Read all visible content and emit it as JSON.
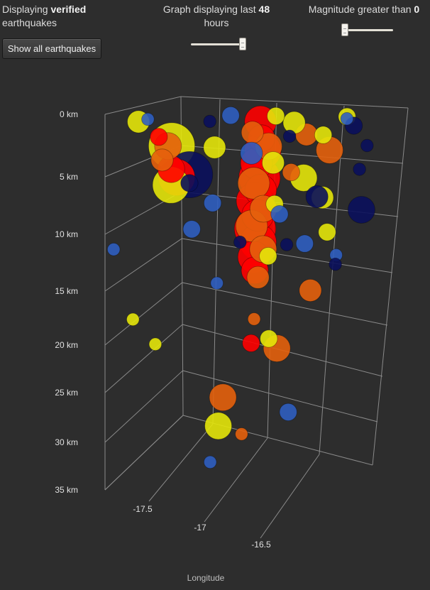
{
  "header": {
    "status_prefix": "Displaying",
    "status_bold": "verified",
    "status_suffix": "earthquakes",
    "hours_prefix": "Graph displaying last",
    "hours_value": "48",
    "hours_suffix": "hours",
    "hours_slider_fraction": 0.98,
    "magnitude_prefix": "Magnitude greater than",
    "magnitude_value": "0",
    "magnitude_slider_fraction": 0.0
  },
  "toolbar": {
    "show_all_label": "Show all earthquakes"
  },
  "colors": {
    "background": "#2d2d2d",
    "grid": "#8a8a8a",
    "red": "#ff0000",
    "orange": "#e4600c",
    "yellow": "#e4e60a",
    "blue": "#2f5ec0",
    "navy": "#0a0f5c"
  },
  "chart_data": {
    "type": "scatter",
    "projection": "3d",
    "xlabel": "Longitude",
    "ylabel": "",
    "x_ticks": [
      "-17.5",
      "-17",
      "-16.5"
    ],
    "y_ticks": [
      "0 km",
      "5 km",
      "10 km",
      "15 km",
      "20 km",
      "25 km",
      "30 km",
      "35 km"
    ],
    "xlim": [
      -17.9,
      -16.3
    ],
    "depth_lim": [
      0,
      35
    ],
    "grid": true,
    "legend": "none",
    "series": [
      {
        "color_key": "red",
        "points": [
          {
            "lon": -17.62,
            "depth": 2.1,
            "size": 3
          },
          {
            "lon": -17.55,
            "depth": 5.2,
            "size": 5
          },
          {
            "lon": -17.52,
            "depth": 6.0,
            "size": 7
          },
          {
            "lon": -17.08,
            "depth": 1.0,
            "size": 6
          },
          {
            "lon": -17.07,
            "depth": 2.6,
            "size": 5
          },
          {
            "lon": -17.06,
            "depth": 3.8,
            "size": 7
          },
          {
            "lon": -17.09,
            "depth": 5.0,
            "size": 6
          },
          {
            "lon": -17.07,
            "depth": 6.4,
            "size": 8
          },
          {
            "lon": -17.06,
            "depth": 7.6,
            "size": 6
          },
          {
            "lon": -17.09,
            "depth": 8.6,
            "size": 7
          },
          {
            "lon": -17.07,
            "depth": 10.0,
            "size": 6
          },
          {
            "lon": -17.08,
            "depth": 11.3,
            "size": 8
          },
          {
            "lon": -17.06,
            "depth": 12.6,
            "size": 7
          },
          {
            "lon": -17.08,
            "depth": 14.0,
            "size": 6
          },
          {
            "lon": -17.07,
            "depth": 15.3,
            "size": 5
          },
          {
            "lon": -17.07,
            "depth": 22.3,
            "size": 3
          }
        ]
      },
      {
        "color_key": "orange",
        "points": [
          {
            "lon": -17.57,
            "depth": 3.0,
            "size": 5
          },
          {
            "lon": -17.6,
            "depth": 4.3,
            "size": 4
          },
          {
            "lon": -17.12,
            "depth": 2.0,
            "size": 4
          },
          {
            "lon": -17.03,
            "depth": 3.4,
            "size": 5
          },
          {
            "lon": -17.1,
            "depth": 6.9,
            "size": 6
          },
          {
            "lon": -17.04,
            "depth": 9.4,
            "size": 5
          },
          {
            "lon": -17.1,
            "depth": 11.0,
            "size": 6
          },
          {
            "lon": -17.03,
            "depth": 13.3,
            "size": 5
          },
          {
            "lon": -17.05,
            "depth": 16.0,
            "size": 4
          },
          {
            "lon": -16.83,
            "depth": 2.4,
            "size": 4
          },
          {
            "lon": -16.7,
            "depth": 4.0,
            "size": 5
          },
          {
            "lon": -16.9,
            "depth": 6.0,
            "size": 3
          },
          {
            "lon": -16.75,
            "depth": 17.6,
            "size": 4
          },
          {
            "lon": -17.06,
            "depth": 20.0,
            "size": 2
          },
          {
            "lon": -16.92,
            "depth": 23.0,
            "size": 5
          },
          {
            "lon": -17.22,
            "depth": 27.3,
            "size": 5
          },
          {
            "lon": -17.1,
            "depth": 31.0,
            "size": 2
          }
        ]
      },
      {
        "color_key": "yellow",
        "points": [
          {
            "lon": -17.73,
            "depth": 0.6,
            "size": 4
          },
          {
            "lon": -17.55,
            "depth": 3.0,
            "size": 9
          },
          {
            "lon": -17.55,
            "depth": 6.7,
            "size": 7
          },
          {
            "lon": -17.32,
            "depth": 3.3,
            "size": 4
          },
          {
            "lon": -17.0,
            "depth": 0.5,
            "size": 3
          },
          {
            "lon": -17.0,
            "depth": 5.0,
            "size": 4
          },
          {
            "lon": -16.98,
            "depth": 9.0,
            "size": 3
          },
          {
            "lon": -16.9,
            "depth": 1.2,
            "size": 4
          },
          {
            "lon": -16.74,
            "depth": 2.5,
            "size": 3
          },
          {
            "lon": -16.62,
            "depth": 0.8,
            "size": 3
          },
          {
            "lon": -16.83,
            "depth": 6.6,
            "size": 5
          },
          {
            "lon": -16.72,
            "depth": 8.6,
            "size": 4
          },
          {
            "lon": -16.68,
            "depth": 12.0,
            "size": 3
          },
          {
            "lon": -17.0,
            "depth": 14.0,
            "size": 3
          },
          {
            "lon": -17.75,
            "depth": 19.2,
            "size": 2
          },
          {
            "lon": -17.62,
            "depth": 21.7,
            "size": 2
          },
          {
            "lon": -16.97,
            "depth": 22.0,
            "size": 3
          },
          {
            "lon": -17.24,
            "depth": 30.0,
            "size": 5
          }
        ]
      },
      {
        "color_key": "blue",
        "points": [
          {
            "lon": -17.68,
            "depth": 0.4,
            "size": 2
          },
          {
            "lon": -17.24,
            "depth": 0.3,
            "size": 3
          },
          {
            "lon": -17.12,
            "depth": 4.0,
            "size": 4
          },
          {
            "lon": -17.32,
            "depth": 8.6,
            "size": 3
          },
          {
            "lon": -17.43,
            "depth": 11.0,
            "size": 3
          },
          {
            "lon": -17.86,
            "depth": 12.5,
            "size": 2
          },
          {
            "lon": -16.95,
            "depth": 10.0,
            "size": 3
          },
          {
            "lon": -16.62,
            "depth": 1.0,
            "size": 2
          },
          {
            "lon": -16.8,
            "depth": 13.0,
            "size": 3
          },
          {
            "lon": -16.62,
            "depth": 14.3,
            "size": 2
          },
          {
            "lon": -17.28,
            "depth": 16.3,
            "size": 2
          },
          {
            "lon": -16.83,
            "depth": 29.3,
            "size": 3
          },
          {
            "lon": -17.28,
            "depth": 33.4,
            "size": 2
          }
        ]
      },
      {
        "color_key": "navy",
        "points": [
          {
            "lon": -17.45,
            "depth": 5.8,
            "size": 9
          },
          {
            "lon": -16.75,
            "depth": 8.5,
            "size": 4
          },
          {
            "lon": -16.5,
            "depth": 10.0,
            "size": 5
          },
          {
            "lon": -16.58,
            "depth": 1.7,
            "size": 3
          },
          {
            "lon": -16.5,
            "depth": 3.7,
            "size": 2
          },
          {
            "lon": -16.92,
            "depth": 2.5,
            "size": 2
          },
          {
            "lon": -16.9,
            "depth": 13.0,
            "size": 2
          },
          {
            "lon": -16.62,
            "depth": 15.2,
            "size": 2
          },
          {
            "lon": -17.35,
            "depth": 0.8,
            "size": 2
          },
          {
            "lon": -17.45,
            "depth": 6.6,
            "size": 3
          },
          {
            "lon": -17.16,
            "depth": 12.5,
            "size": 2
          },
          {
            "lon": -16.53,
            "depth": 6.0,
            "size": 2
          }
        ]
      }
    ]
  }
}
